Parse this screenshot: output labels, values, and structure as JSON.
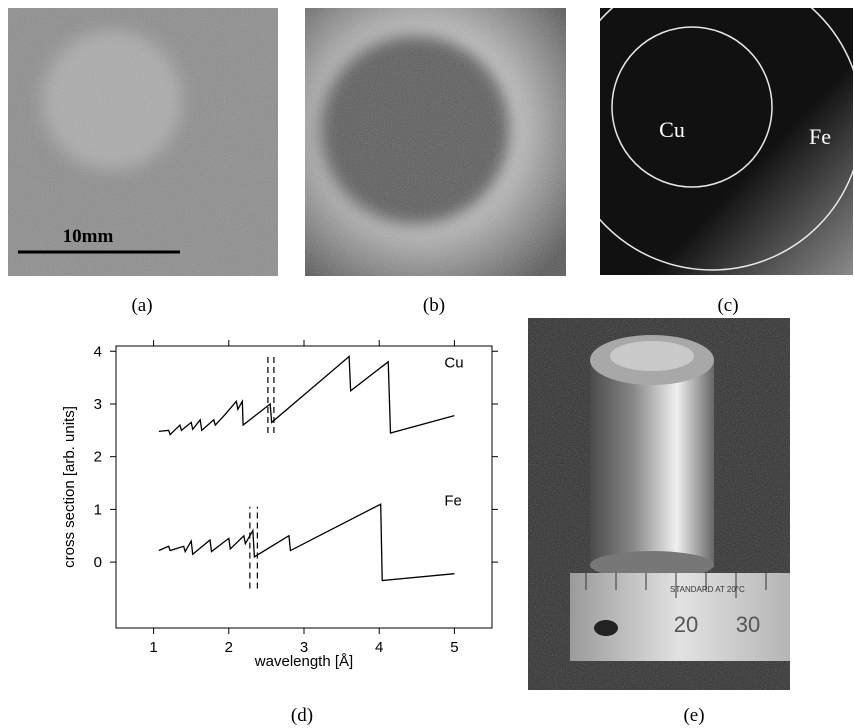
{
  "panels": {
    "a": {
      "label": "(a)",
      "scale_bar": "10mm"
    },
    "b": {
      "label": "(b)"
    },
    "c": {
      "label": "(c)",
      "regions": [
        "Cu",
        "Fe"
      ]
    },
    "d": {
      "label": "(d)"
    },
    "e": {
      "label": "(e)",
      "ruler_text": "STANDARD AT 20°C",
      "ruler_numbers": [
        "20",
        "30"
      ]
    }
  },
  "chart_data": {
    "type": "line",
    "xlabel": "wavelength [Å]",
    "ylabel": "cross section [arb. units]",
    "xlim": [
      0.5,
      5.5
    ],
    "ylim": [
      -1.25,
      4.1
    ],
    "xticks": [
      1,
      2,
      3,
      4,
      5
    ],
    "yticks": [
      0,
      1,
      2,
      3,
      4
    ],
    "series": [
      {
        "name": "Cu",
        "color": "#000000",
        "x": [
          1.07,
          1.2,
          1.22,
          1.35,
          1.37,
          1.5,
          1.52,
          1.62,
          1.64,
          1.8,
          1.82,
          1.95,
          2.1,
          2.12,
          2.18,
          2.19,
          2.55,
          2.57,
          3.6,
          3.62,
          4.12,
          4.15,
          5.0
        ],
        "values": [
          2.48,
          2.5,
          2.42,
          2.6,
          2.5,
          2.65,
          2.52,
          2.7,
          2.5,
          2.7,
          2.6,
          2.8,
          3.05,
          2.9,
          3.05,
          2.6,
          3.0,
          2.65,
          3.9,
          3.25,
          3.8,
          2.45,
          2.78
        ]
      },
      {
        "name": "Fe",
        "color": "#000000",
        "x": [
          1.07,
          1.2,
          1.22,
          1.4,
          1.42,
          1.5,
          1.52,
          1.75,
          1.77,
          2.0,
          2.02,
          2.2,
          2.22,
          2.32,
          2.34,
          2.8,
          2.82,
          4.02,
          4.04,
          5.0
        ],
        "values": [
          0.22,
          0.3,
          0.22,
          0.3,
          0.2,
          0.4,
          0.15,
          0.42,
          0.2,
          0.45,
          0.25,
          0.5,
          0.35,
          0.6,
          0.1,
          0.5,
          0.22,
          1.1,
          -0.35,
          -0.22
        ]
      }
    ],
    "vlines": [
      {
        "x": 2.52,
        "from": 2.45,
        "to": 3.9
      },
      {
        "x": 2.6,
        "from": 2.45,
        "to": 3.9
      },
      {
        "x": 2.28,
        "from": -0.5,
        "to": 1.05
      },
      {
        "x": 2.38,
        "from": -0.5,
        "to": 1.05
      }
    ]
  }
}
